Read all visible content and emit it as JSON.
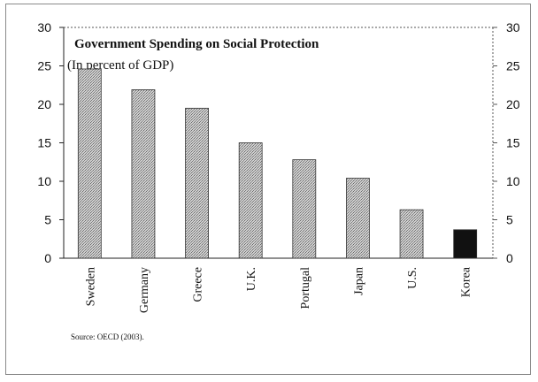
{
  "chart_data": {
    "type": "bar",
    "title": "Government Spending on Social Protection",
    "subtitle": "(In percent of GDP)",
    "categories": [
      "Sweden",
      "Germany",
      "Greece",
      "U.K.",
      "Portugal",
      "Japan",
      "U.S.",
      "Korea"
    ],
    "values": [
      24.6,
      21.9,
      19.5,
      15.0,
      12.8,
      10.4,
      6.3,
      3.7
    ],
    "ylim": [
      0,
      30
    ],
    "yticks": [
      0,
      5,
      10,
      15,
      20,
      25,
      30
    ],
    "xlabel": "",
    "ylabel": "",
    "grid": false,
    "dual_y_axis": true,
    "bar_colors": [
      "#b8b8b8",
      "#b8b8b8",
      "#b8b8b8",
      "#b8b8b8",
      "#b8b8b8",
      "#b8b8b8",
      "#b8b8b8",
      "#111111"
    ]
  },
  "source_note": "Source: OECD (2003)."
}
